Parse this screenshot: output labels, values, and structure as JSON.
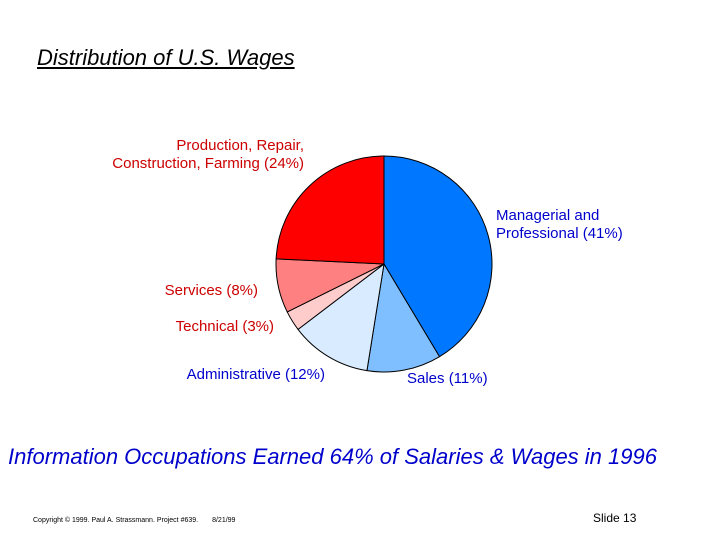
{
  "slide": {
    "title": "Distribution of U.S. Wages",
    "headline": "Information Occupations Earned 64% of Salaries & Wages in 1996",
    "copyright": "Copyright © 1999. Paul A. Strassmann. Project #639.",
    "date": "8/21/99",
    "slide_number": "Slide 13"
  },
  "colors": {
    "headline": "#0000cc",
    "info_label": "#0000cc",
    "other_label": "#cc0000"
  },
  "chart_data": {
    "type": "pie",
    "title": "Distribution of U.S. Wages",
    "start_angle": "12 o'clock",
    "direction": "clockwise",
    "slices": [
      {
        "name": "Managerial and Professional",
        "value": 41,
        "label": [
          "Managerial and",
          "Professional (41%)"
        ],
        "color": "#0077ff",
        "label_color": "#0000cc"
      },
      {
        "name": "Sales",
        "value": 11,
        "label": [
          "Sales (11%)"
        ],
        "color": "#80bfff",
        "label_color": "#0000cc"
      },
      {
        "name": "Administrative",
        "value": 12,
        "label": [
          "Administrative (12%)"
        ],
        "color": "#d9ecff",
        "label_color": "#0000cc"
      },
      {
        "name": "Technical",
        "value": 3,
        "label": [
          "Technical (3%)"
        ],
        "color": "#ffcccc",
        "label_color": "#cc0000"
      },
      {
        "name": "Services",
        "value": 8,
        "label": [
          "Services (8%)"
        ],
        "color": "#ff8080",
        "label_color": "#cc0000"
      },
      {
        "name": "Production, Repair, Construction, Farming",
        "value": 24,
        "label": [
          "Production, Repair,",
          "Construction, Farming (24%)"
        ],
        "color": "#ff0000",
        "label_color": "#cc0000"
      }
    ]
  }
}
